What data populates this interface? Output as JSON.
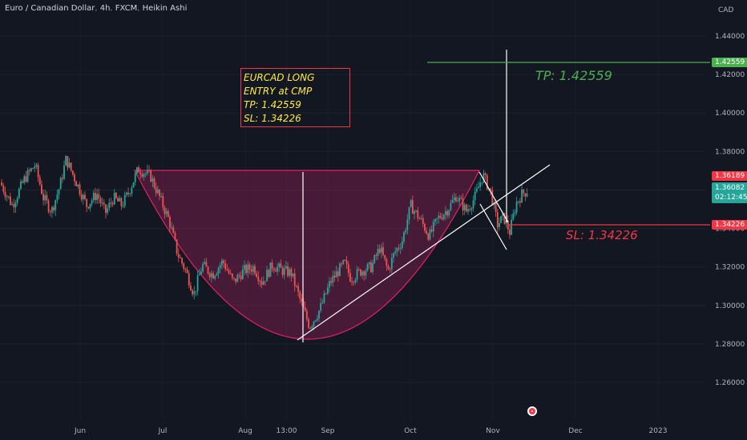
{
  "header": {
    "symbol": "Euro / Canadian Dollar",
    "timeframe": "4h",
    "exchange": "FXCM",
    "chart_style": "Heikin Ashi"
  },
  "note": {
    "lines": [
      "EURCAD LONG",
      "ENTRY at CMP",
      "TP: 1.42559",
      "SL: 1.34226"
    ]
  },
  "labels": {
    "tp": "TP: 1.42559",
    "sl": "SL: 1.34226"
  },
  "price_tags": {
    "tp": "1.42559",
    "high": "1.36189",
    "current": "1.36082",
    "countdown": "02:12:45",
    "sl": "1.34226"
  },
  "colors": {
    "background": "#131722",
    "up": "#26a69a",
    "down": "#ef5350",
    "tp": "#4caf50",
    "sl": "#f23645",
    "note_text": "#ffeb3b",
    "cup_fill": "#7b1f4b"
  },
  "chart_data": {
    "type": "candlestick",
    "title": "Euro / Canadian Dollar, 4h, FXCM, Heikin Ashi",
    "y_unit": "CAD",
    "ylim": [
      1.25,
      1.455
    ],
    "y_ticks": [
      "1.44000",
      "1.42000",
      "1.40000",
      "1.38000",
      "1.36000",
      "1.34000",
      "1.32000",
      "1.30000",
      "1.28000",
      "1.26000"
    ],
    "x_ticks": [
      "Jun",
      "Jul",
      "Aug",
      "13:00",
      "Sep",
      "Oct",
      "Nov",
      "Dec",
      "2023"
    ],
    "price_path": [
      {
        "x": 0.0,
        "y": 1.364
      },
      {
        "x": 0.3,
        "y": 1.352
      },
      {
        "x": 0.6,
        "y": 1.366
      },
      {
        "x": 0.85,
        "y": 1.373
      },
      {
        "x": 1.05,
        "y": 1.356
      },
      {
        "x": 1.25,
        "y": 1.349
      },
      {
        "x": 1.45,
        "y": 1.362
      },
      {
        "x": 1.6,
        "y": 1.376
      },
      {
        "x": 1.85,
        "y": 1.364
      },
      {
        "x": 2.1,
        "y": 1.352
      },
      {
        "x": 2.35,
        "y": 1.358
      },
      {
        "x": 2.55,
        "y": 1.348
      },
      {
        "x": 2.75,
        "y": 1.356
      },
      {
        "x": 2.95,
        "y": 1.352
      },
      {
        "x": 3.1,
        "y": 1.358
      },
      {
        "x": 3.35,
        "y": 1.371
      },
      {
        "x": 3.65,
        "y": 1.367
      },
      {
        "x": 3.85,
        "y": 1.357
      },
      {
        "x": 4.1,
        "y": 1.344
      },
      {
        "x": 4.3,
        "y": 1.327
      },
      {
        "x": 4.5,
        "y": 1.318
      },
      {
        "x": 4.7,
        "y": 1.306
      },
      {
        "x": 4.9,
        "y": 1.321
      },
      {
        "x": 5.15,
        "y": 1.316
      },
      {
        "x": 5.4,
        "y": 1.323
      },
      {
        "x": 5.65,
        "y": 1.312
      },
      {
        "x": 5.9,
        "y": 1.318
      },
      {
        "x": 6.15,
        "y": 1.32
      },
      {
        "x": 6.35,
        "y": 1.312
      },
      {
        "x": 6.6,
        "y": 1.321
      },
      {
        "x": 6.85,
        "y": 1.318
      },
      {
        "x": 7.05,
        "y": 1.317
      },
      {
        "x": 7.3,
        "y": 1.301
      },
      {
        "x": 7.5,
        "y": 1.289
      },
      {
        "x": 7.75,
        "y": 1.298
      },
      {
        "x": 8.0,
        "y": 1.312
      },
      {
        "x": 8.2,
        "y": 1.318
      },
      {
        "x": 8.35,
        "y": 1.322
      },
      {
        "x": 8.5,
        "y": 1.314
      },
      {
        "x": 8.75,
        "y": 1.318
      },
      {
        "x": 9.0,
        "y": 1.32
      },
      {
        "x": 9.2,
        "y": 1.33
      },
      {
        "x": 9.4,
        "y": 1.318
      },
      {
        "x": 9.55,
        "y": 1.327
      },
      {
        "x": 9.75,
        "y": 1.334
      },
      {
        "x": 9.95,
        "y": 1.352
      },
      {
        "x": 10.2,
        "y": 1.344
      },
      {
        "x": 10.4,
        "y": 1.336
      },
      {
        "x": 10.6,
        "y": 1.345
      },
      {
        "x": 10.85,
        "y": 1.35
      },
      {
        "x": 11.05,
        "y": 1.357
      },
      {
        "x": 11.3,
        "y": 1.349
      },
      {
        "x": 11.5,
        "y": 1.356
      },
      {
        "x": 11.7,
        "y": 1.368
      },
      {
        "x": 11.9,
        "y": 1.358
      },
      {
        "x": 12.05,
        "y": 1.342
      },
      {
        "x": 12.2,
        "y": 1.346
      },
      {
        "x": 12.35,
        "y": 1.338
      },
      {
        "x": 12.5,
        "y": 1.353
      },
      {
        "x": 12.65,
        "y": 1.358
      },
      {
        "x": 12.8,
        "y": 1.36
      }
    ],
    "tp_level": 1.42559,
    "sl_level": 1.34226,
    "current_price": 1.36082,
    "session_high": 1.36189
  }
}
